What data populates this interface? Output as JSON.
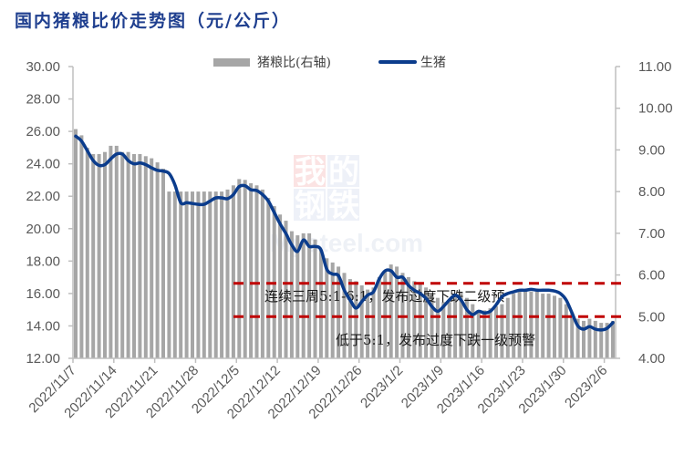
{
  "title": "国内猪粮比价走势图（元/公斤）",
  "legend": {
    "bar_label": "猪粮比(右轴)",
    "line_label": "生猪"
  },
  "annotations": {
    "upper": "连续三周5:1-6:1，发布过度下跌二级预",
    "lower": "低于5:1，发布过度下跌一级预警"
  },
  "watermark": {
    "cn": [
      "我",
      "的",
      "钢",
      "铁"
    ],
    "en": "Mysteel.com"
  },
  "colors": {
    "title": "#1f3f8f",
    "bar": "#a6a6a6",
    "line": "#0b3c8c",
    "threshold": "#c00000",
    "axis": "#bfbfbf"
  },
  "chart_data": {
    "type": "bar+line",
    "title": "国内猪粮比价走势图（元/公斤）",
    "xlabel": "",
    "ylabel_left": "元/公斤",
    "ylabel_right": "猪粮比",
    "ylim_left": [
      12,
      30
    ],
    "ylim_right": [
      4,
      11
    ],
    "yticks_left": [
      "30.00",
      "28.00",
      "26.00",
      "24.00",
      "22.00",
      "20.00",
      "18.00",
      "16.00",
      "14.00",
      "12.00"
    ],
    "yticks_right": [
      "11.00",
      "10.00",
      "9.00",
      "8.00",
      "7.00",
      "6.00",
      "5.00",
      "4.00"
    ],
    "x_tick_labels": [
      "2022/11/7",
      "2022/11/14",
      "2022/11/21",
      "2022/11/28",
      "2022/12/5",
      "2022/12/12",
      "2022/12/19",
      "2022/12/26",
      "2023/1/2",
      "2023/1/9",
      "2023/1/16",
      "2023/1/23",
      "2023/1/30",
      "2023/2/6"
    ],
    "grid": false,
    "legend_position": "top",
    "thresholds_right_axis": [
      5.8,
      5.0
    ],
    "series": [
      {
        "name": "猪粮比(右轴)",
        "type": "bar",
        "axis": "right",
        "values": [
          9.5,
          9.35,
          9.05,
          8.9,
          8.9,
          8.95,
          9.1,
          9.1,
          8.95,
          8.95,
          8.9,
          8.9,
          8.85,
          8.8,
          8.7,
          8.55,
          8.0,
          8.0,
          8.0,
          8.0,
          8.0,
          8.0,
          8.0,
          8.0,
          8.0,
          8.0,
          8.05,
          8.15,
          8.3,
          8.28,
          8.2,
          8.15,
          8.05,
          7.85,
          7.65,
          7.45,
          7.3,
          7.05,
          6.95,
          7.0,
          7.0,
          6.85,
          6.6,
          6.4,
          6.3,
          6.2,
          6.05,
          5.9,
          5.85,
          5.75,
          5.65,
          5.7,
          5.95,
          6.1,
          6.25,
          6.2,
          6.05,
          5.95,
          5.85,
          5.8,
          5.7,
          5.55,
          5.45,
          5.35,
          5.35,
          5.5,
          5.6,
          5.45,
          5.3,
          5.15,
          5.15,
          5.2,
          5.25,
          5.3,
          5.45,
          5.55,
          5.6,
          5.6,
          5.6,
          5.6,
          5.55,
          5.55,
          5.5,
          5.45,
          5.3,
          5.1,
          4.95,
          4.9,
          4.95,
          4.9,
          4.85,
          4.85,
          4.9
        ]
      },
      {
        "name": "生猪",
        "type": "line",
        "axis": "left",
        "values": [
          25.7,
          25.4,
          24.8,
          24.2,
          23.9,
          23.95,
          24.3,
          24.6,
          24.6,
          24.2,
          24.0,
          24.05,
          23.95,
          23.75,
          23.6,
          23.55,
          23.4,
          22.7,
          21.6,
          21.6,
          21.55,
          21.5,
          21.5,
          21.7,
          21.9,
          21.9,
          21.85,
          22.1,
          22.6,
          22.65,
          22.4,
          22.35,
          22.1,
          21.7,
          21.0,
          20.3,
          19.7,
          19.0,
          18.6,
          19.3,
          18.9,
          18.9,
          18.7,
          17.5,
          17.2,
          17.1,
          16.2,
          15.6,
          15.1,
          15.5,
          15.9,
          16.1,
          16.9,
          17.4,
          17.4,
          17.0,
          17.0,
          16.5,
          16.2,
          16.0,
          15.7,
          15.2,
          14.9,
          15.2,
          15.6,
          15.9,
          15.6,
          15.0,
          14.7,
          14.9,
          14.8,
          14.9,
          15.3,
          15.8,
          16.0,
          16.1,
          16.2,
          16.2,
          16.25,
          16.2,
          16.2,
          16.2,
          16.15,
          16.0,
          15.6,
          14.8,
          14.0,
          13.8,
          13.95,
          13.8,
          13.75,
          13.85,
          14.2
        ]
      }
    ]
  }
}
